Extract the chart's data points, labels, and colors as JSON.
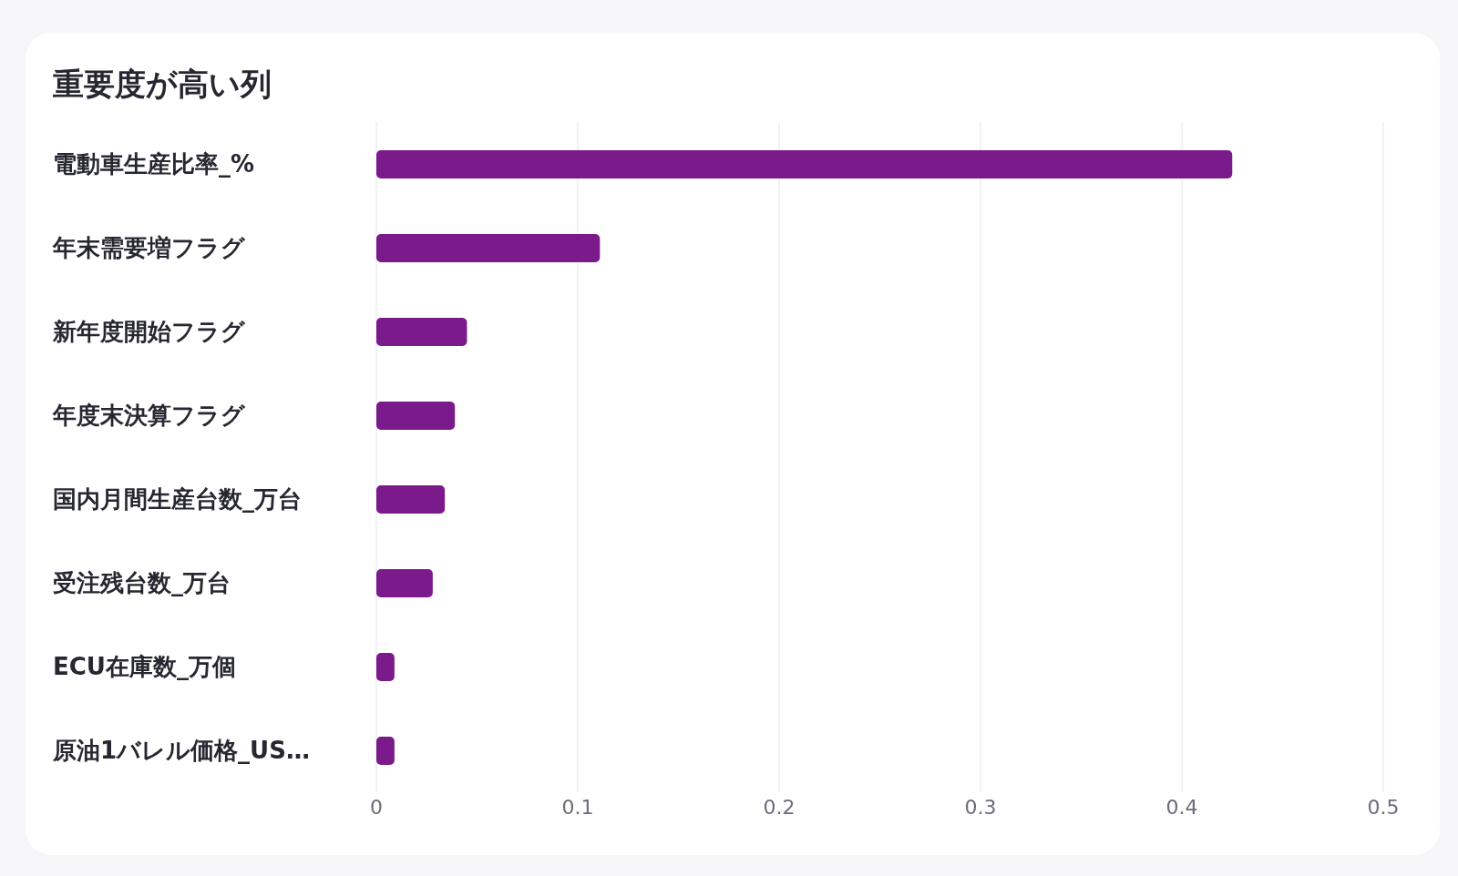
{
  "chart_data": {
    "type": "bar",
    "orientation": "horizontal",
    "title": "重要度が高い列",
    "categories": [
      "電動車生産比率_%",
      "年末需要増フラグ",
      "新年度開始フラグ",
      "年度末決算フラグ",
      "国内月間生産台数_万台",
      "受注残台数_万台",
      "ECU在庫数_万個",
      "原油1バレル価格_US…"
    ],
    "values": [
      0.425,
      0.111,
      0.045,
      0.039,
      0.034,
      0.028,
      0.009,
      0.009
    ],
    "color": "#7b1a8a",
    "xlim": [
      0,
      0.5
    ],
    "xticks": [
      0,
      0.1,
      0.2,
      0.3,
      0.4,
      0.5
    ],
    "grid": "x"
  }
}
